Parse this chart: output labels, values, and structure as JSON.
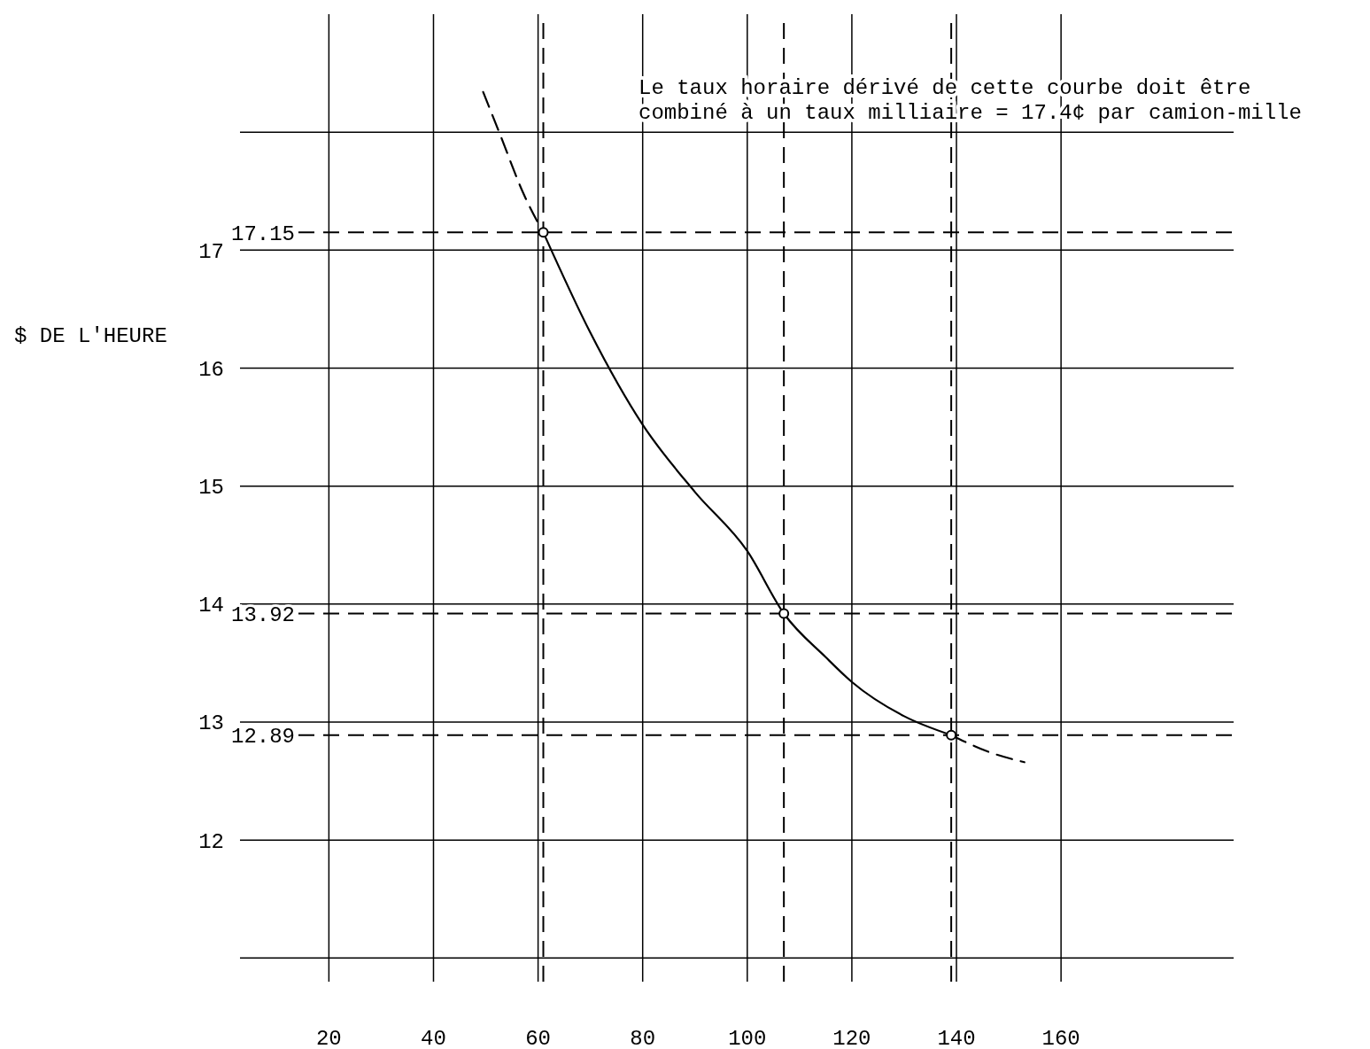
{
  "chart_data": {
    "type": "line",
    "ylabel": "$ DE L'HEURE",
    "annotations": [
      "Le taux horaire dérivé de cette courbe doit être\ncombiné à un taux milliaire = 17.4¢ par camion-mille"
    ],
    "xlim": [
      3,
      193
    ],
    "ylim": [
      10.8,
      19
    ],
    "xticks": [
      20,
      40,
      60,
      80,
      100,
      120,
      140,
      160
    ],
    "yticks": [
      {
        "value": 11,
        "label": null
      },
      12,
      13,
      14,
      15,
      16,
      17,
      {
        "value": 18,
        "label": null
      }
    ],
    "grid": true,
    "series": [
      {
        "color": "#000000",
        "line_style": "dashed",
        "x": [
          49.5,
          53,
          57,
          61
        ],
        "values": [
          18.34,
          17.95,
          17.5,
          17.15
        ]
      },
      {
        "color": "#000000",
        "line_style": "solid",
        "x": [
          61,
          70,
          80,
          90,
          100,
          107,
          115,
          120,
          130,
          139
        ],
        "values": [
          17.15,
          16.3,
          15.52,
          14.95,
          14.45,
          13.92,
          13.55,
          13.34,
          13.05,
          12.89
        ]
      },
      {
        "color": "#000000",
        "line_style": "dashed",
        "x": [
          139,
          146,
          153
        ],
        "values": [
          12.89,
          12.75,
          12.66
        ]
      },
      {
        "type": "scatter",
        "color": "#000000",
        "marker": "circle",
        "x": [
          61,
          107,
          139
        ],
        "values": [
          17.15,
          13.92,
          12.89
        ]
      }
    ],
    "ref_lines": [
      {
        "axis": "y",
        "value": 17.15,
        "label": "17.15",
        "line_style": "dashed"
      },
      {
        "axis": "y",
        "value": 13.92,
        "label": "13.92",
        "line_style": "dashed"
      },
      {
        "axis": "y",
        "value": 12.89,
        "label": "12.89",
        "line_style": "dashed"
      },
      {
        "axis": "x",
        "value": 61,
        "label": null,
        "line_style": "dashed"
      },
      {
        "axis": "x",
        "value": 107,
        "label": null,
        "line_style": "dashed"
      },
      {
        "axis": "x",
        "value": 139,
        "label": null,
        "line_style": "dashed"
      }
    ]
  }
}
